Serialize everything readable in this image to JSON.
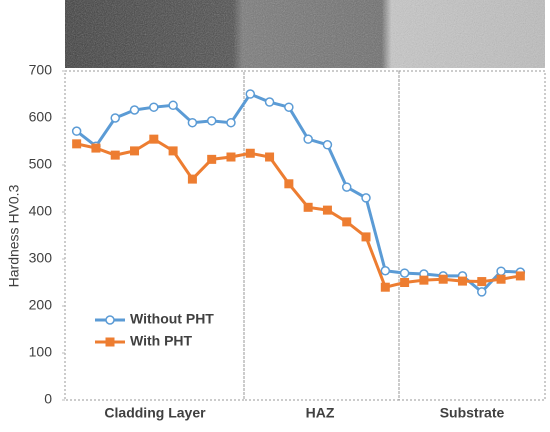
{
  "chart_data": {
    "type": "line",
    "ylabel": "Hardness HV0.3",
    "categories": [
      null,
      null,
      null,
      null,
      null,
      null,
      null,
      null,
      null,
      null,
      null,
      null,
      null,
      null,
      null,
      null,
      null,
      null,
      null,
      null,
      null,
      null,
      null,
      null
    ],
    "regions": [
      "Cladding Layer",
      "HAZ",
      "Substrate"
    ],
    "series": [
      {
        "name": "Without PHT",
        "color": "#5b9bd5",
        "marker": "circle",
        "values": [
          572,
          540,
          600,
          617,
          623,
          627,
          590,
          594,
          590,
          651,
          634,
          623,
          555,
          543,
          453,
          430,
          275,
          270,
          268,
          264,
          264,
          230,
          274,
          272
        ]
      },
      {
        "name": "With PHT",
        "color": "#ed7d31",
        "marker": "square",
        "values": [
          545,
          536,
          521,
          530,
          555,
          530,
          470,
          512,
          517,
          525,
          517,
          460,
          410,
          404,
          379,
          347,
          240,
          250,
          255,
          257,
          253,
          252,
          257,
          264
        ]
      }
    ],
    "ylim": [
      0,
      700
    ],
    "yticks": [
      0,
      100,
      200,
      300,
      400,
      500,
      600,
      700
    ],
    "grid": false
  }
}
